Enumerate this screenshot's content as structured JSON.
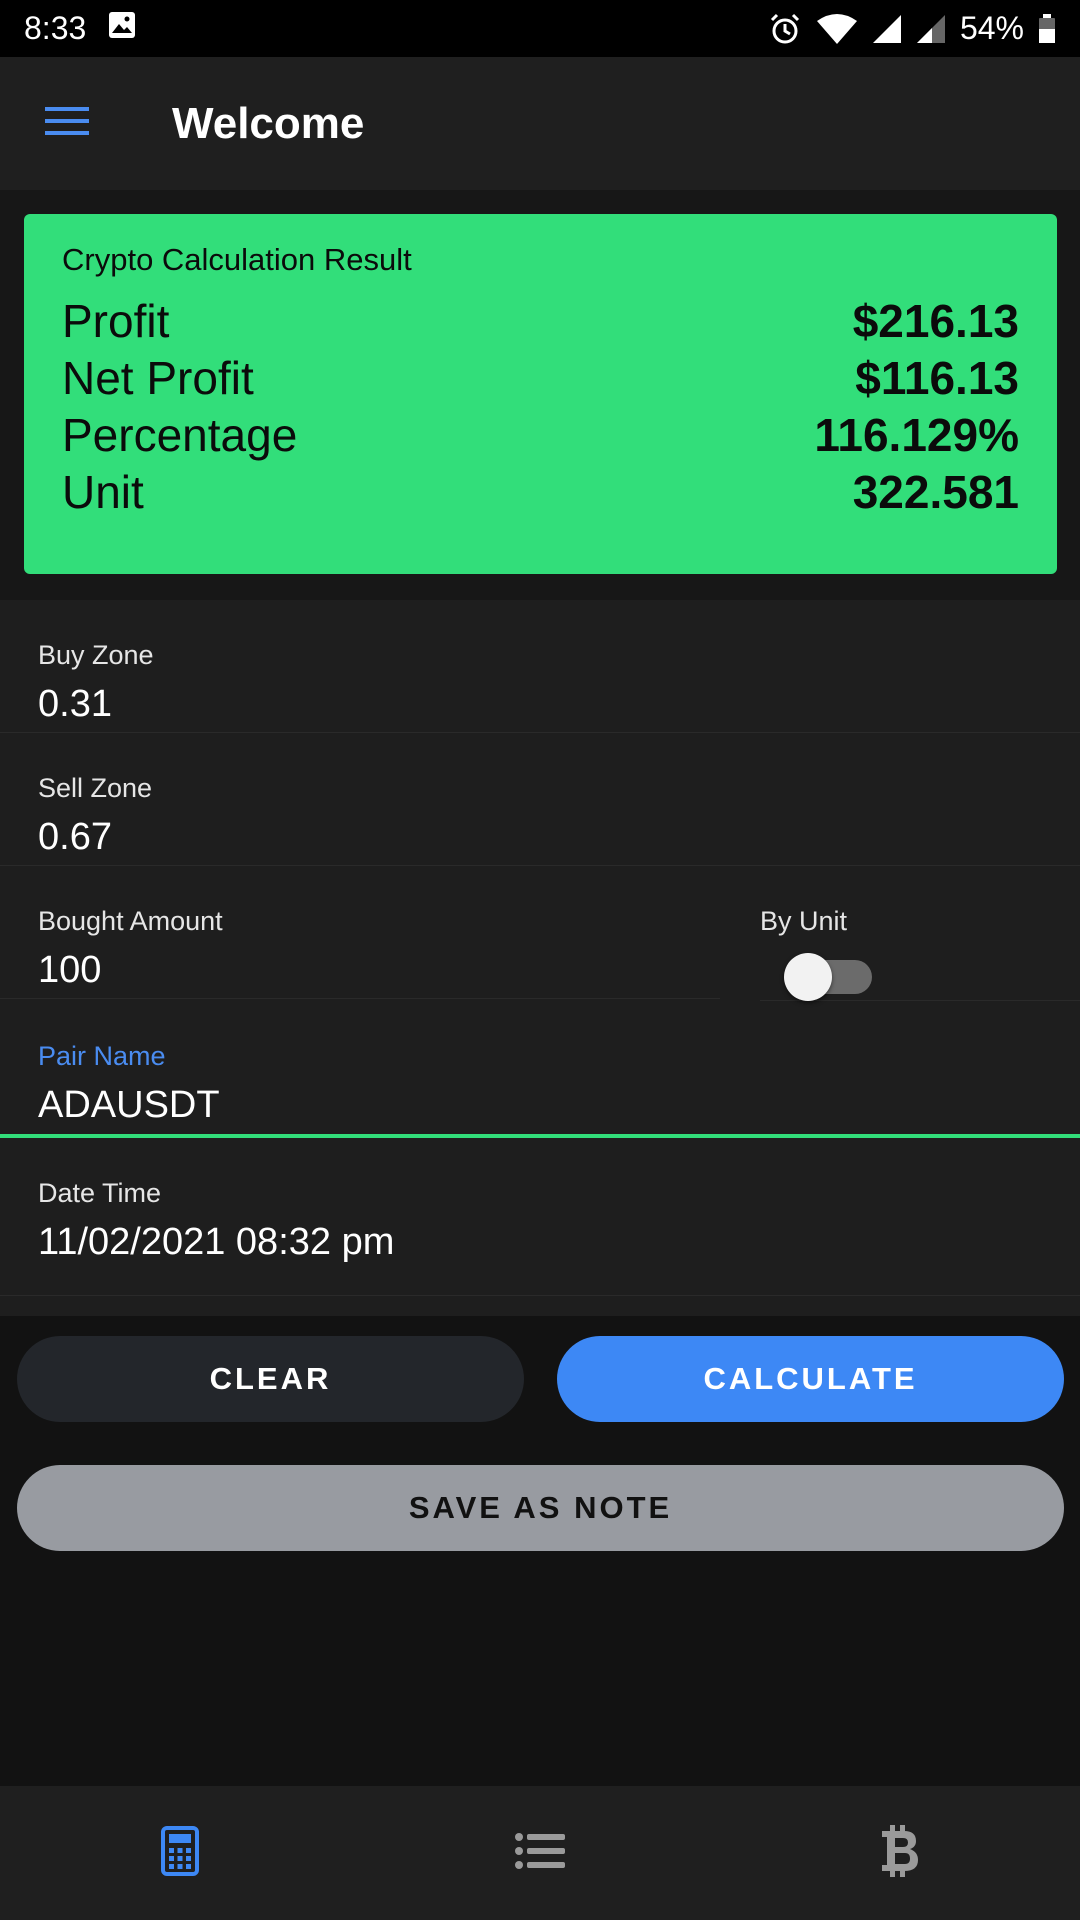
{
  "status_bar": {
    "time": "8:33",
    "battery": "54%"
  },
  "app_bar": {
    "title": "Welcome"
  },
  "result": {
    "heading": "Crypto Calculation Result",
    "rows": [
      {
        "label": "Profit",
        "value": "$216.13"
      },
      {
        "label": "Net Profit",
        "value": "$116.13"
      },
      {
        "label": "Percentage",
        "value": "116.129%"
      },
      {
        "label": "Unit",
        "value": "322.581"
      }
    ],
    "accent": "#32de7a"
  },
  "form": {
    "buy_zone": {
      "label": "Buy Zone",
      "value": "0.31"
    },
    "sell_zone": {
      "label": "Sell Zone",
      "value": "0.67"
    },
    "bought_amount": {
      "label": "Bought Amount",
      "value": "100"
    },
    "by_unit": {
      "label": "By Unit",
      "checked": false
    },
    "pair_name": {
      "label": "Pair Name",
      "value": "ADAUSDT"
    },
    "date_time": {
      "label": "Date Time",
      "value": "11/02/2021 08:32 pm"
    }
  },
  "actions": {
    "clear": "CLEAR",
    "calculate": "CALCULATE",
    "save": "SAVE AS NOTE"
  },
  "bottom_nav": {
    "items": [
      {
        "icon": "calculator-icon",
        "active": true
      },
      {
        "icon": "list-icon",
        "active": false
      },
      {
        "icon": "bitcoin-icon",
        "active": false
      }
    ]
  }
}
